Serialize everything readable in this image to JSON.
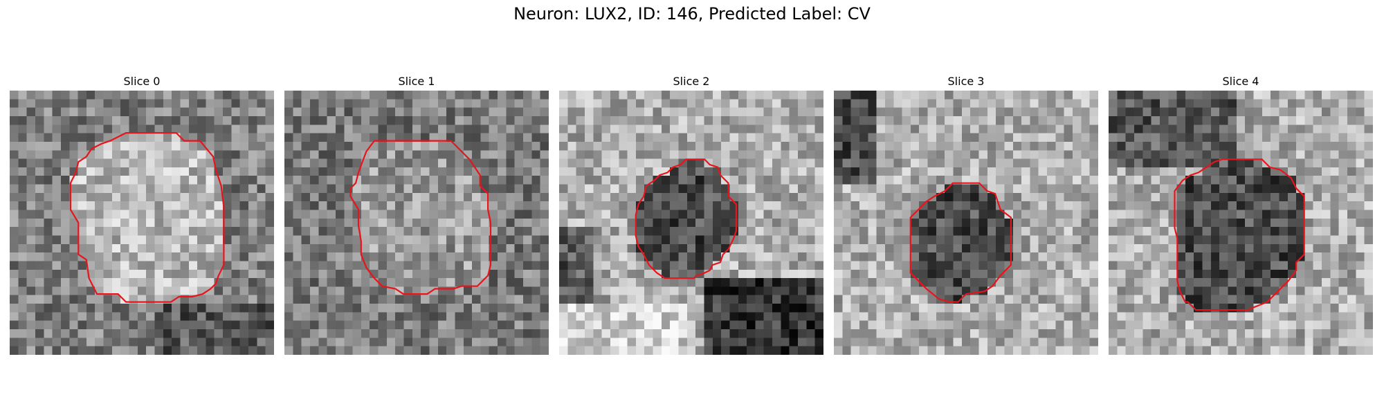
{
  "figure": {
    "title": "Neuron: LUX2, ID: 146, Predicted Label: CV"
  },
  "contour_color": "#e8141c",
  "panels": [
    {
      "title": "Slice 0",
      "center_brightness": "light",
      "contour": [
        [
          0.44,
          0.16
        ],
        [
          0.63,
          0.16
        ],
        [
          0.66,
          0.19
        ],
        [
          0.72,
          0.19
        ],
        [
          0.77,
          0.25
        ],
        [
          0.78,
          0.3
        ],
        [
          0.8,
          0.36
        ],
        [
          0.81,
          0.44
        ],
        [
          0.81,
          0.66
        ],
        [
          0.79,
          0.7
        ],
        [
          0.78,
          0.73
        ],
        [
          0.76,
          0.75
        ],
        [
          0.73,
          0.77
        ],
        [
          0.69,
          0.78
        ],
        [
          0.64,
          0.78
        ],
        [
          0.61,
          0.8
        ],
        [
          0.44,
          0.8
        ],
        [
          0.41,
          0.77
        ],
        [
          0.33,
          0.77
        ],
        [
          0.3,
          0.71
        ],
        [
          0.29,
          0.64
        ],
        [
          0.26,
          0.62
        ],
        [
          0.26,
          0.5
        ],
        [
          0.23,
          0.45
        ],
        [
          0.23,
          0.35
        ],
        [
          0.25,
          0.31
        ],
        [
          0.26,
          0.27
        ],
        [
          0.29,
          0.25
        ],
        [
          0.31,
          0.22
        ],
        [
          0.35,
          0.2
        ],
        [
          0.38,
          0.19
        ]
      ]
    },
    {
      "title": "Slice 1",
      "center_brightness": "medium",
      "contour": [
        [
          0.34,
          0.19
        ],
        [
          0.63,
          0.19
        ],
        [
          0.7,
          0.26
        ],
        [
          0.74,
          0.32
        ],
        [
          0.74,
          0.36
        ],
        [
          0.77,
          0.39
        ],
        [
          0.77,
          0.45
        ],
        [
          0.78,
          0.5
        ],
        [
          0.78,
          0.66
        ],
        [
          0.77,
          0.7
        ],
        [
          0.75,
          0.72
        ],
        [
          0.73,
          0.74
        ],
        [
          0.67,
          0.74
        ],
        [
          0.64,
          0.75
        ],
        [
          0.57,
          0.75
        ],
        [
          0.54,
          0.77
        ],
        [
          0.45,
          0.77
        ],
        [
          0.42,
          0.75
        ],
        [
          0.37,
          0.74
        ],
        [
          0.34,
          0.71
        ],
        [
          0.31,
          0.67
        ],
        [
          0.29,
          0.62
        ],
        [
          0.29,
          0.57
        ],
        [
          0.28,
          0.51
        ],
        [
          0.28,
          0.45
        ],
        [
          0.25,
          0.4
        ],
        [
          0.25,
          0.37
        ],
        [
          0.27,
          0.35
        ],
        [
          0.28,
          0.31
        ],
        [
          0.31,
          0.23
        ]
      ]
    },
    {
      "title": "Slice 2",
      "center_brightness": "dark",
      "contour": [
        [
          0.48,
          0.26
        ],
        [
          0.55,
          0.26
        ],
        [
          0.57,
          0.28
        ],
        [
          0.6,
          0.29
        ],
        [
          0.61,
          0.32
        ],
        [
          0.64,
          0.35
        ],
        [
          0.64,
          0.4
        ],
        [
          0.67,
          0.43
        ],
        [
          0.67,
          0.53
        ],
        [
          0.66,
          0.56
        ],
        [
          0.64,
          0.6
        ],
        [
          0.62,
          0.62
        ],
        [
          0.61,
          0.65
        ],
        [
          0.58,
          0.66
        ],
        [
          0.57,
          0.68
        ],
        [
          0.55,
          0.69
        ],
        [
          0.52,
          0.7
        ],
        [
          0.51,
          0.71
        ],
        [
          0.4,
          0.71
        ],
        [
          0.37,
          0.69
        ],
        [
          0.34,
          0.66
        ],
        [
          0.33,
          0.64
        ],
        [
          0.32,
          0.62
        ],
        [
          0.3,
          0.59
        ],
        [
          0.29,
          0.55
        ],
        [
          0.29,
          0.47
        ],
        [
          0.3,
          0.43
        ],
        [
          0.32,
          0.4
        ],
        [
          0.33,
          0.36
        ],
        [
          0.36,
          0.34
        ],
        [
          0.38,
          0.32
        ],
        [
          0.41,
          0.31
        ],
        [
          0.43,
          0.29
        ],
        [
          0.46,
          0.28
        ]
      ]
    },
    {
      "title": "Slice 3",
      "center_brightness": "dark",
      "contour": [
        [
          0.45,
          0.35
        ],
        [
          0.55,
          0.35
        ],
        [
          0.58,
          0.38
        ],
        [
          0.61,
          0.39
        ],
        [
          0.62,
          0.42
        ],
        [
          0.63,
          0.45
        ],
        [
          0.67,
          0.48
        ],
        [
          0.67,
          0.66
        ],
        [
          0.63,
          0.7
        ],
        [
          0.6,
          0.74
        ],
        [
          0.57,
          0.76
        ],
        [
          0.5,
          0.77
        ],
        [
          0.47,
          0.8
        ],
        [
          0.44,
          0.8
        ],
        [
          0.4,
          0.79
        ],
        [
          0.35,
          0.75
        ],
        [
          0.29,
          0.69
        ],
        [
          0.29,
          0.48
        ],
        [
          0.35,
          0.42
        ],
        [
          0.38,
          0.4
        ],
        [
          0.42,
          0.38
        ]
      ]
    },
    {
      "title": "Slice 4",
      "center_brightness": "dark",
      "contour": [
        [
          0.43,
          0.26
        ],
        [
          0.58,
          0.26
        ],
        [
          0.61,
          0.29
        ],
        [
          0.65,
          0.3
        ],
        [
          0.69,
          0.33
        ],
        [
          0.71,
          0.37
        ],
        [
          0.74,
          0.4
        ],
        [
          0.74,
          0.62
        ],
        [
          0.71,
          0.65
        ],
        [
          0.71,
          0.68
        ],
        [
          0.68,
          0.72
        ],
        [
          0.65,
          0.75
        ],
        [
          0.6,
          0.8
        ],
        [
          0.55,
          0.82
        ],
        [
          0.53,
          0.83
        ],
        [
          0.33,
          0.83
        ],
        [
          0.3,
          0.8
        ],
        [
          0.29,
          0.8
        ],
        [
          0.27,
          0.76
        ],
        [
          0.26,
          0.72
        ],
        [
          0.26,
          0.56
        ],
        [
          0.25,
          0.52
        ],
        [
          0.25,
          0.38
        ],
        [
          0.28,
          0.34
        ],
        [
          0.31,
          0.32
        ],
        [
          0.34,
          0.31
        ],
        [
          0.37,
          0.29
        ],
        [
          0.4,
          0.27
        ]
      ]
    }
  ]
}
